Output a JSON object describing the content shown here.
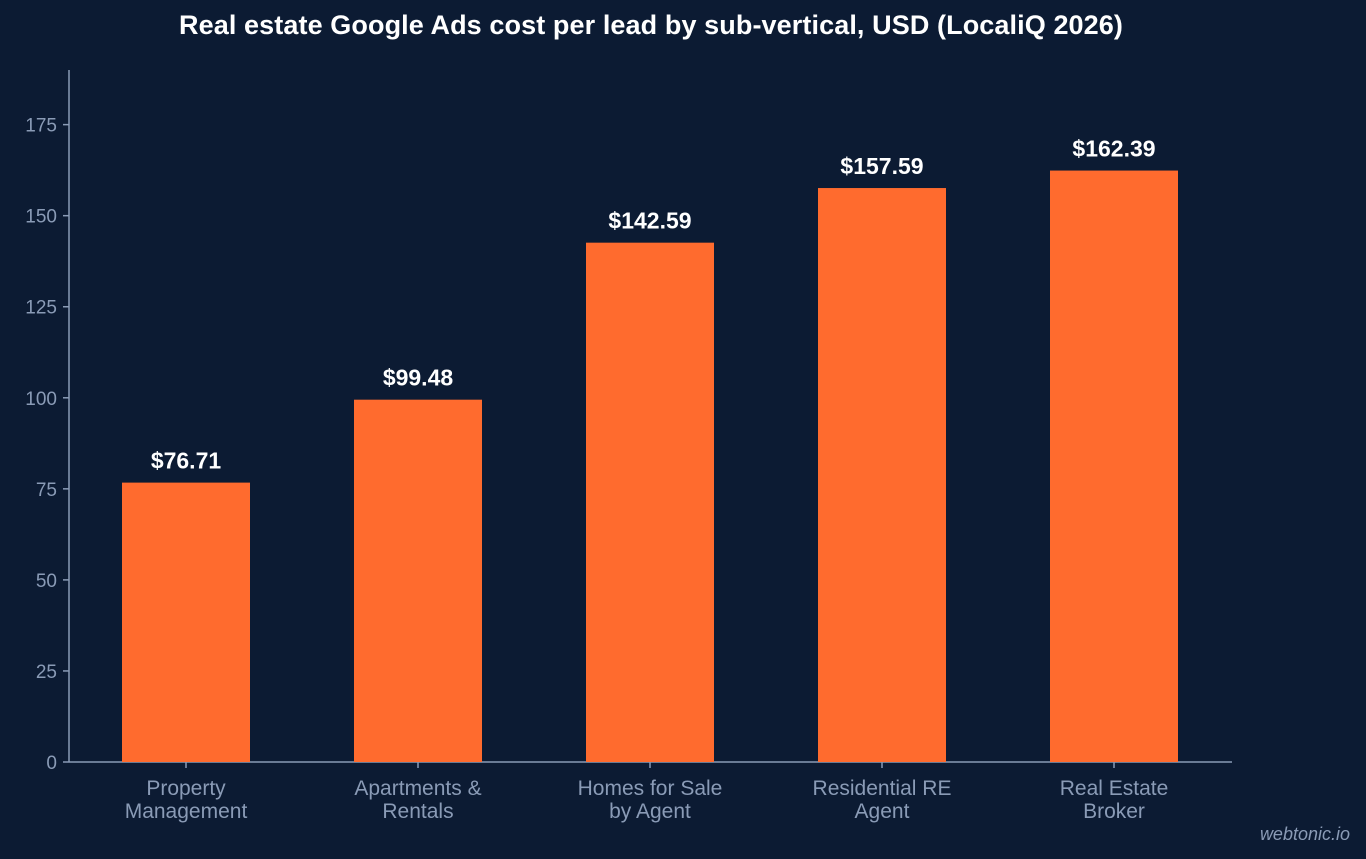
{
  "chart_data": {
    "type": "bar",
    "title": "Real estate Google Ads cost per lead by sub-vertical, USD (LocaliQ 2026)",
    "categories": [
      [
        "Property",
        "Management"
      ],
      [
        "Apartments &",
        "Rentals"
      ],
      [
        "Homes for Sale",
        "by Agent"
      ],
      [
        "Residential RE",
        "Agent"
      ],
      [
        "Real Estate",
        "Broker"
      ]
    ],
    "values": [
      76.71,
      99.48,
      142.59,
      157.59,
      162.39
    ],
    "data_labels": [
      "$76.71",
      "$99.48",
      "$142.59",
      "$157.59",
      "$162.39"
    ],
    "yticks": [
      0,
      25,
      50,
      75,
      100,
      125,
      150,
      175
    ],
    "ylim": [
      0,
      190
    ],
    "xlabel": "",
    "ylabel": "",
    "grid": false,
    "colors": {
      "bar": "#ff6b2e",
      "axis": "#8a9bb6",
      "background": "#0c1b33",
      "title": "#ffffff"
    }
  },
  "watermark": "webtonic.io"
}
